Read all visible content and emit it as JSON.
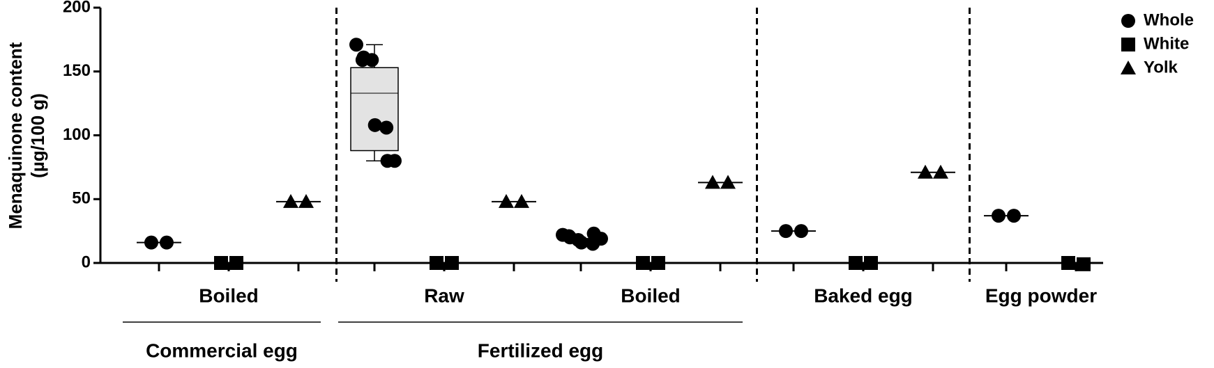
{
  "chart_data": {
    "type": "dot",
    "ylabel": [
      "Menaquinone content",
      "(µg/100 g)"
    ],
    "ylim": [
      0,
      200
    ],
    "yticks": [
      0,
      50,
      100,
      150,
      200
    ],
    "series": [
      {
        "name": "Whole",
        "marker": "circle",
        "color": "#000000"
      },
      {
        "name": "White",
        "marker": "square",
        "color": "#000000"
      },
      {
        "name": "Yolk",
        "marker": "triangle",
        "color": "#000000"
      }
    ],
    "groups": [
      {
        "label": "Commercial egg",
        "conditions": [
          {
            "label": "Boiled",
            "entries": [
              {
                "series": 0,
                "values": [
                  16,
                  16
                ],
                "median": 16
              },
              {
                "series": 1,
                "values": [
                  0,
                  0
                ],
                "median": 0
              },
              {
                "series": 2,
                "values": [
                  48,
                  48
                ],
                "median": 48
              }
            ]
          }
        ]
      },
      {
        "label": "Fertilized egg",
        "conditions": [
          {
            "label": "Raw",
            "entries": [
              {
                "series": 0,
                "values": [
                  171,
                  161,
                  159,
                  159,
                  108,
                  106,
                  80,
                  80
                ],
                "median": 133,
                "box": {
                  "q1": 88,
                  "q3": 153,
                  "low": 80,
                  "high": 171
                }
              },
              {
                "series": 1,
                "values": [
                  0,
                  0
                ],
                "median": 0
              },
              {
                "series": 2,
                "values": [
                  48,
                  48
                ],
                "median": 48
              }
            ]
          },
          {
            "label": "Boiled",
            "entries": [
              {
                "series": 0,
                "values": [
                  22,
                  20,
                  21,
                  18,
                  16,
                  15,
                  23,
                  19
                ],
                "median": 19
              },
              {
                "series": 1,
                "values": [
                  0,
                  0
                ],
                "median": 0
              },
              {
                "series": 2,
                "values": [
                  63,
                  63
                ],
                "median": 63
              }
            ]
          }
        ]
      },
      {
        "conditions": [
          {
            "label": "Baked egg",
            "entries": [
              {
                "series": 0,
                "values": [
                  25,
                  25
                ],
                "median": 25
              },
              {
                "series": 1,
                "values": [
                  0,
                  0
                ],
                "median": 0
              },
              {
                "series": 2,
                "values": [
                  71,
                  71
                ],
                "median": 71
              }
            ]
          }
        ]
      },
      {
        "conditions": [
          {
            "label": "Egg powder",
            "entries": [
              {
                "series": 0,
                "values": [
                  37,
                  37
                ],
                "median": 37
              },
              {
                "series": 1,
                "values": [
                  0,
                  -1
                ],
                "median": 0
              }
            ]
          }
        ]
      }
    ]
  }
}
